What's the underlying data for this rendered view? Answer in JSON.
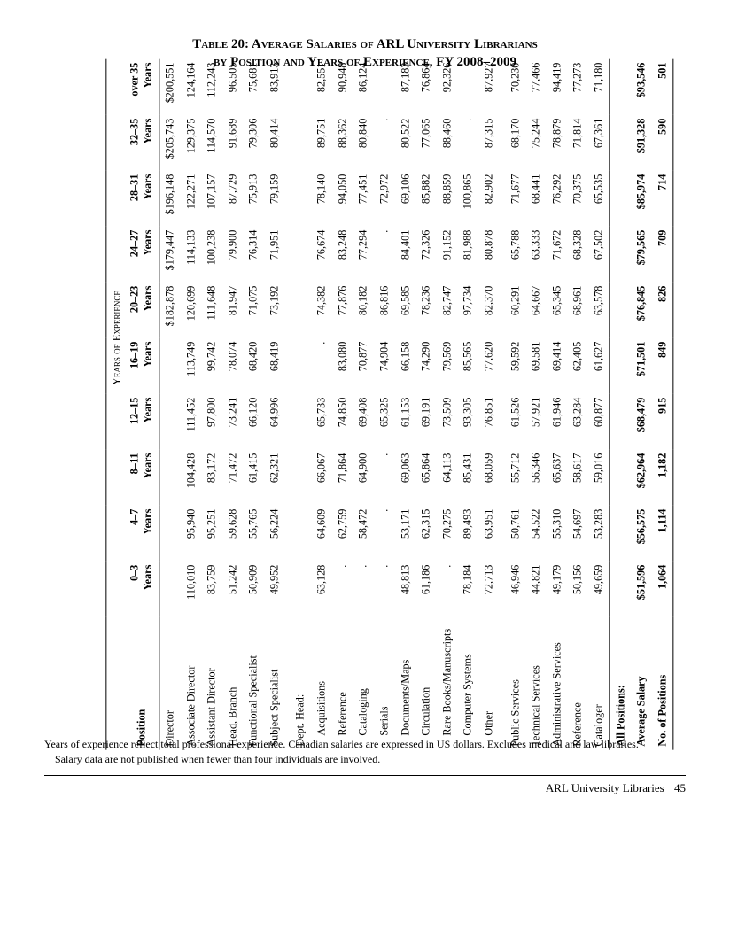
{
  "title_line1": "Table 20: Average Salaries of ARL University Librarians",
  "title_line2": "by Position and Years of Experience, FY 2008–2009",
  "superheader": "Years of Experience",
  "columns": [
    "Position",
    "0–3 Years",
    "4–7 Years",
    "8–11 Years",
    "12–15 Years",
    "16–19 Years",
    "20–23 Years",
    "24–27 Years",
    "28–31 Years",
    "32–35 Years",
    "over 35 Years"
  ],
  "sections": [
    {
      "label": null,
      "rows": [
        {
          "pos": "Director",
          "vals": [
            "",
            "",
            "",
            "",
            "",
            "$182,878",
            "$179,447",
            "$196,148",
            "$205,743",
            "$200,551"
          ]
        },
        {
          "pos": "Associate Director",
          "vals": [
            "110,010",
            "95,940",
            "104,428",
            "111,452",
            "113,749",
            "120,699",
            "114,133",
            "122,271",
            "129,375",
            "124,164"
          ]
        },
        {
          "pos": "Assistant Director",
          "vals": [
            "83,759",
            "95,251",
            "83,172",
            "97,800",
            "99,742",
            "111,648",
            "100,238",
            "107,157",
            "114,570",
            "112,243"
          ]
        },
        {
          "pos": "Head, Branch",
          "vals": [
            "51,242",
            "59,628",
            "71,472",
            "73,241",
            "78,074",
            "81,947",
            "79,900",
            "87,729",
            "91,689",
            "96,505"
          ]
        },
        {
          "pos": "Functional Specialist",
          "vals": [
            "50,909",
            "55,765",
            "61,415",
            "66,120",
            "68,420",
            "71,075",
            "76,314",
            "75,913",
            "79,306",
            "75,681"
          ]
        },
        {
          "pos": "Subject Specialist",
          "vals": [
            "49,952",
            "56,224",
            "62,321",
            "64,996",
            "68,419",
            "73,192",
            "71,951",
            "79,159",
            "80,414",
            "83,913"
          ]
        }
      ]
    },
    {
      "label": "Dept. Head:",
      "rows": [
        {
          "pos": "Acquisitions",
          "vals": [
            "63,128",
            "64,609",
            "66,067",
            "65,733",
            ".",
            "74,382",
            "76,674",
            "78,140",
            "89,751",
            "82,551"
          ]
        },
        {
          "pos": "Reference",
          "vals": [
            ".",
            "62,759",
            "71,864",
            "74,850",
            "83,080",
            "77,876",
            "83,248",
            "94,050",
            "88,362",
            "90,948"
          ]
        },
        {
          "pos": "Cataloging",
          "vals": [
            ".",
            "58,472",
            "64,900",
            "69,408",
            "70,877",
            "80,182",
            "77,294",
            "77,451",
            "80,840",
            "86,124"
          ]
        },
        {
          "pos": "Serials",
          "vals": [
            ".",
            ".",
            ".",
            "65,325",
            "74,904",
            "86,816",
            ".",
            "72,972",
            ".",
            "."
          ]
        },
        {
          "pos": "Documents/Maps",
          "vals": [
            "48,813",
            "53,171",
            "69,063",
            "61,153",
            "66,158",
            "69,585",
            "84,401",
            "69,106",
            "80,522",
            "87,183"
          ]
        },
        {
          "pos": "Circulation",
          "vals": [
            "61,186",
            "62,315",
            "65,864",
            "69,191",
            "74,290",
            "78,236",
            "72,326",
            "85,882",
            "77,065",
            "76,864"
          ]
        },
        {
          "pos": "Rare Books/Manuscripts",
          "vals": [
            ".",
            "70,275",
            "64,113",
            "73,509",
            "79,569",
            "82,747",
            "91,152",
            "88,859",
            "88,460",
            "92,326"
          ]
        },
        {
          "pos": "Computer Systems",
          "vals": [
            "78,184",
            "89,493",
            "85,431",
            "93,305",
            "85,565",
            "97,734",
            "81,988",
            "100,865",
            ".",
            "."
          ]
        },
        {
          "pos": "Other",
          "vals": [
            "72,713",
            "63,951",
            "68,059",
            "76,851",
            "77,620",
            "82,370",
            "80,878",
            "82,902",
            "87,315",
            "87,927"
          ]
        }
      ]
    },
    {
      "label": null,
      "rows": [
        {
          "pos": "Public Services",
          "vals": [
            "46,946",
            "50,761",
            "55,712",
            "61,526",
            "59,592",
            "60,291",
            "65,788",
            "71,677",
            "68,170",
            "70,230"
          ]
        },
        {
          "pos": "Technical Services",
          "vals": [
            "44,821",
            "54,522",
            "56,346",
            "57,921",
            "69,581",
            "64,667",
            "63,333",
            "68,441",
            "75,244",
            "77,466"
          ]
        },
        {
          "pos": "Administrative Services",
          "vals": [
            "49,179",
            "55,310",
            "65,637",
            "61,946",
            "69,414",
            "65,345",
            "71,672",
            "76,292",
            "78,879",
            "94,419"
          ]
        },
        {
          "pos": "Reference",
          "vals": [
            "50,156",
            "54,697",
            "58,617",
            "63,284",
            "62,405",
            "68,961",
            "68,328",
            "70,375",
            "71,814",
            "77,273"
          ]
        },
        {
          "pos": "Cataloger",
          "vals": [
            "49,659",
            "53,283",
            "59,016",
            "60,877",
            "61,627",
            "63,578",
            "67,502",
            "65,535",
            "67,361",
            "71,180"
          ]
        }
      ]
    }
  ],
  "footer": {
    "all_positions_label": "All Positions:",
    "rows": [
      {
        "pos": "Average Salary",
        "vals": [
          "$51,596",
          "$56,575",
          "$62,964",
          "$68,479",
          "$71,501",
          "$76,845",
          "$79,565",
          "$85,974",
          "$91,328",
          "$93,546"
        ]
      },
      {
        "pos": "No. of Positions",
        "vals": [
          "1,064",
          "1,114",
          "1,182",
          "915",
          "849",
          "826",
          "709",
          "714",
          "590",
          "501"
        ]
      }
    ]
  },
  "footnote_line1": "Years of experience reflect total professional experience. Canadian salaries are expressed in US dollars. Excludes medical and law libraries.",
  "footnote_line2": "Salary data are not published when fewer than four individuals are involved.",
  "running_footer": "ARL University Libraries",
  "page_number": "45"
}
